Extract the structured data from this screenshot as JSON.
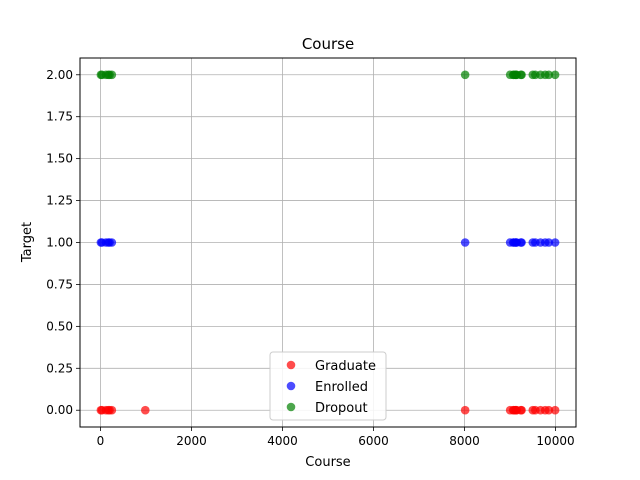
{
  "chart_data": {
    "type": "scatter",
    "title": "Course",
    "xlabel": "Course",
    "ylabel": "Target",
    "xlim": [
      -450,
      10450
    ],
    "ylim": [
      -0.1,
      2.1
    ],
    "xticks": [
      0,
      2000,
      4000,
      6000,
      8000,
      10000
    ],
    "xtick_labels": [
      "0",
      "2000",
      "4000",
      "6000",
      "8000",
      "10000"
    ],
    "yticks": [
      0.0,
      0.25,
      0.5,
      0.75,
      1.0,
      1.25,
      1.5,
      1.75,
      2.0
    ],
    "ytick_labels": [
      "0.00",
      "0.25",
      "0.50",
      "0.75",
      "1.00",
      "1.25",
      "1.50",
      "1.75",
      "2.00"
    ],
    "grid": true,
    "legend_position": "lower-center",
    "series": [
      {
        "name": "Graduate",
        "color": "#ff0000",
        "y": 0,
        "x": [
          33,
          171,
          9003,
          9070,
          9085,
          9119,
          9130,
          9147,
          9238,
          9254,
          9500,
          9556,
          9670,
          9773,
          9853,
          9991,
          9,
          120,
          200,
          250,
          985,
          8014
        ]
      },
      {
        "name": "Enrolled",
        "color": "#0000ff",
        "y": 1,
        "x": [
          33,
          171,
          9003,
          9070,
          9085,
          9119,
          9130,
          9147,
          9238,
          9254,
          9500,
          9556,
          9670,
          9773,
          9853,
          9991,
          9,
          120,
          200,
          250,
          8014
        ]
      },
      {
        "name": "Dropout",
        "color": "#008000",
        "y": 2,
        "x": [
          33,
          171,
          9003,
          9070,
          9085,
          9119,
          9130,
          9147,
          9238,
          9254,
          9500,
          9556,
          9670,
          9773,
          9853,
          9991,
          9,
          120,
          200,
          250,
          8014
        ]
      }
    ]
  }
}
